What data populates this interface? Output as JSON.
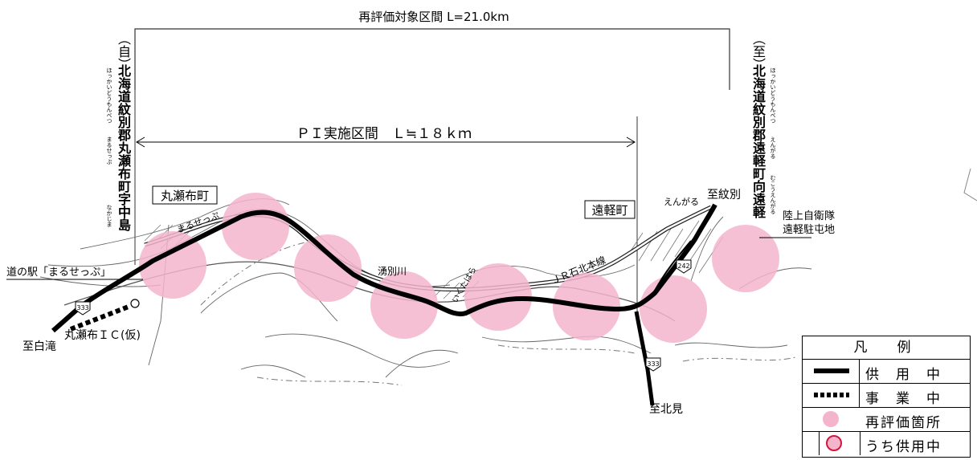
{
  "header": {
    "title": "再評価対象区間 L=21.0km"
  },
  "pi_section": {
    "label": "ＰＩ実施区間　Ｌ≒１８ｋｍ"
  },
  "start": {
    "bracket": "（自）",
    "address": "北海道紋別郡丸瀬布町字中島",
    "ruby_hokkaido_mombetsu": "ほっかいどうもんべつ",
    "ruby_maruseppu": "まるせっぷ",
    "ruby_nakajima": "なかじま"
  },
  "end": {
    "bracket": "（至）",
    "address": "北海道紋別郡遠軽町向遠軽",
    "ruby_hokkaido_mombetsu": "ほっかいどうもんべつ",
    "ruby_engaru": "えんがる",
    "ruby_mukaiengaru": "むこうえんがる"
  },
  "map": {
    "town_maruseppu": "丸瀬布町",
    "town_engaru": "遠軽町",
    "roadside_station": "道の駅「まるせっぷ」",
    "ic": "丸瀬布ＩＣ(仮)",
    "to_shirataki": "至白滝",
    "to_mombetsu": "至紋別",
    "to_kitami": "至北見",
    "river": "湧別川",
    "rail": "ＪＲ石北本線",
    "station_maruseppu": "まるせっぷ",
    "station_engaru": "えんがる",
    "station_ikutahara": "いくたはら",
    "gsdf": "陸上自衛隊\n遠軽駐屯地",
    "gsdf_line1": "陸上自衛隊",
    "gsdf_line2": "遠軽駐屯地",
    "route_333": "333",
    "route_242": "242"
  },
  "legend": {
    "title": "凡　例",
    "in_service": "供　用　中",
    "under_construction": "事　業　中",
    "reevaluation": "再評価箇所",
    "of_which_in_service": "うち供用中"
  },
  "colors": {
    "road": "#000000",
    "circle": "#f4b5cc",
    "ring": "#d4143c",
    "line": "#444444"
  }
}
